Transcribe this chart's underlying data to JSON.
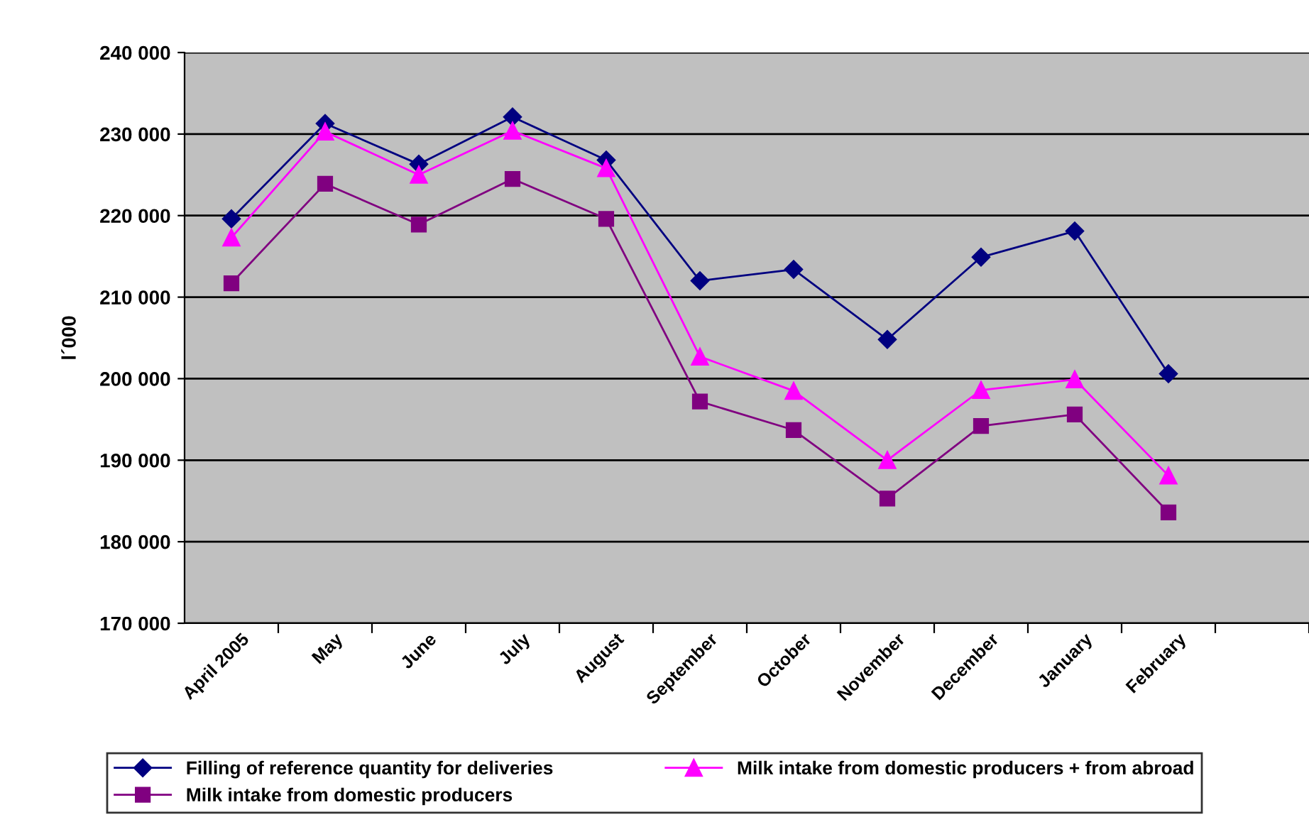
{
  "chart_data": {
    "type": "line",
    "ylabel": "l´000",
    "categories": [
      "April 2005",
      "May",
      "June",
      "July",
      "August",
      "September",
      "October",
      "November",
      "December",
      "January",
      "February",
      null
    ],
    "series": [
      {
        "name": "Filling of reference quantity for deliveries",
        "color": "#000080",
        "marker": "diamond",
        "values": [
          219600,
          231300,
          226300,
          232100,
          226800,
          212000,
          213400,
          204800,
          214900,
          218100,
          200600,
          null
        ]
      },
      {
        "name": "Milk intake from domestic producers",
        "color": "#800080",
        "marker": "square",
        "values": [
          211700,
          223900,
          218900,
          224500,
          219600,
          197200,
          193700,
          185300,
          194200,
          195600,
          183600,
          null
        ]
      },
      {
        "name": "Milk intake from domestic producers + from abroad",
        "color": "#ff00ff",
        "marker": "triangle",
        "values": [
          217300,
          230300,
          225000,
          230400,
          225800,
          202700,
          198500,
          190000,
          198600,
          199900,
          188100,
          null
        ]
      }
    ],
    "ylim": [
      170000,
      240000
    ],
    "yticks": [
      {
        "value": 170000,
        "label": "170 000"
      },
      {
        "value": 180000,
        "label": "180 000"
      },
      {
        "value": 190000,
        "label": "190 000"
      },
      {
        "value": 200000,
        "label": "200 000"
      },
      {
        "value": 210000,
        "label": "210 000"
      },
      {
        "value": 220000,
        "label": "220 000"
      },
      {
        "value": 230000,
        "label": "230 000"
      },
      {
        "value": 240000,
        "label": "240 000"
      }
    ],
    "grid": "y",
    "legend": "bottom",
    "line_style": "solid"
  }
}
